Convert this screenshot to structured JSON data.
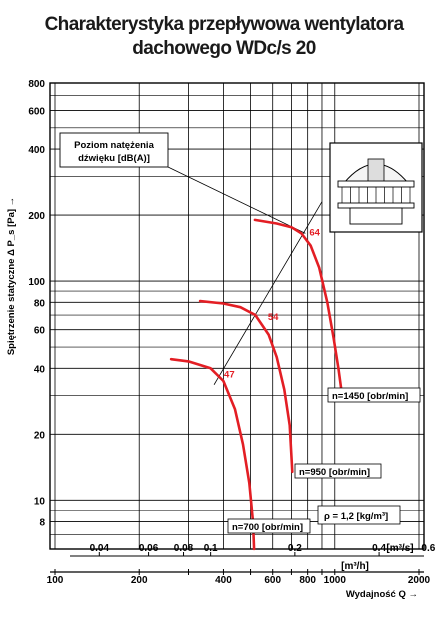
{
  "title_line1": "Charakterystyka przepływowa wentylatora",
  "title_line2": "dachowego WDc/s 20",
  "chart_data": {
    "type": "line",
    "title": "Charakterystyka przepływowa wentylatora dachowego WDc/s 20",
    "ylabel": "Spiętrzenie statyczne Δ P_s [Pa] →",
    "xlabel": "Wydajność Q →",
    "y_scale": "log",
    "ylim": [
      6,
      800
    ],
    "y_ticks": [
      800,
      600,
      400,
      200,
      100,
      80,
      60,
      40,
      20,
      10,
      8
    ],
    "x_scale": "log",
    "xlim": [
      100,
      2000
    ],
    "x_unit_m3h": "[m³/h]",
    "x_ticks_m3h": [
      100,
      200,
      400,
      600,
      800,
      1000,
      2000
    ],
    "x_unit_m3s": "[m³/s]",
    "x_ticks_m3s": [
      0.04,
      0.06,
      0.08,
      0.1,
      0.2,
      0.4,
      0.6
    ],
    "grid": true,
    "series": [
      {
        "name": "n=1450 [obr/min]",
        "color": "#e31e24",
        "x": [
          518,
          620,
          700,
          760,
          820,
          880,
          940,
          990,
          1030,
          1055
        ],
        "y": [
          190,
          183,
          176,
          165,
          145,
          115,
          80,
          55,
          40,
          32
        ]
      },
      {
        "name": "n=950 [obr/min]",
        "color": "#e31e24",
        "x": [
          330,
          400,
          460,
          520,
          580,
          620,
          660,
          690,
          700,
          705
        ],
        "y": [
          81,
          79,
          76,
          70,
          57,
          45,
          32,
          22,
          16,
          13.5
        ]
      },
      {
        "name": "n=700 [obr/min]",
        "color": "#e31e24",
        "x": [
          260,
          300,
          360,
          400,
          440,
          470,
          495,
          510,
          515
        ],
        "y": [
          44,
          43,
          40,
          35,
          26,
          18,
          12,
          8,
          6
        ]
      }
    ],
    "sound_levels": [
      {
        "label": "64",
        "x": 785,
        "y": 165
      },
      {
        "label": "54",
        "x": 558,
        "y": 68
      },
      {
        "label": "47",
        "x": 389,
        "y": 37
      }
    ],
    "annotations": {
      "sound_box": "Poziom natężenia dźwięku [dB(A)]",
      "density": "ρ = 1,2 [kg/m³]"
    }
  }
}
